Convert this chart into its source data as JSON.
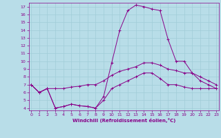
{
  "xlabel": "Windchill (Refroidissement éolien,°C)",
  "background_color": "#b8dde8",
  "grid_color": "#a0ccd8",
  "line_color": "#880088",
  "x_ticks": [
    0,
    1,
    2,
    3,
    4,
    5,
    6,
    7,
    8,
    9,
    10,
    11,
    12,
    13,
    14,
    15,
    16,
    17,
    18,
    19,
    20,
    21,
    22,
    23
  ],
  "y_ticks": [
    4,
    5,
    6,
    7,
    8,
    9,
    10,
    11,
    12,
    13,
    14,
    15,
    16,
    17
  ],
  "ylim": [
    3.7,
    17.5
  ],
  "xlim": [
    -0.3,
    23.3
  ],
  "curve1_x": [
    0,
    1,
    2,
    3,
    4,
    5,
    6,
    7,
    8,
    9,
    10,
    11,
    12,
    13,
    14,
    15,
    16,
    17,
    18,
    19,
    20,
    21,
    22,
    23
  ],
  "curve1_y": [
    7.0,
    6.0,
    6.5,
    6.5,
    6.5,
    6.7,
    6.8,
    7.0,
    7.0,
    7.5,
    8.2,
    8.7,
    9.0,
    9.3,
    9.8,
    9.8,
    9.5,
    9.0,
    8.8,
    8.5,
    8.5,
    8.0,
    7.5,
    7.0
  ],
  "curve2_x": [
    0,
    1,
    2,
    3,
    4,
    5,
    6,
    7,
    8,
    9,
    10,
    11,
    12,
    13,
    14,
    15,
    16,
    17,
    18,
    19,
    20,
    21,
    22,
    23
  ],
  "curve2_y": [
    7.0,
    6.0,
    6.5,
    4.0,
    4.2,
    4.5,
    4.3,
    4.2,
    4.0,
    5.5,
    9.8,
    14.0,
    16.5,
    17.2,
    17.0,
    16.7,
    16.5,
    12.8,
    10.0,
    10.0,
    8.5,
    7.5,
    7.0,
    6.5
  ],
  "curve3_x": [
    0,
    1,
    2,
    3,
    4,
    5,
    6,
    7,
    8,
    9,
    10,
    11,
    12,
    13,
    14,
    15,
    16,
    17,
    18,
    19,
    20,
    21,
    22,
    23
  ],
  "curve3_y": [
    7.0,
    6.0,
    6.5,
    4.0,
    4.2,
    4.5,
    4.3,
    4.2,
    4.0,
    5.0,
    6.5,
    7.0,
    7.5,
    8.0,
    8.5,
    8.5,
    7.8,
    7.0,
    7.0,
    6.7,
    6.5,
    6.5,
    6.5,
    6.5
  ]
}
